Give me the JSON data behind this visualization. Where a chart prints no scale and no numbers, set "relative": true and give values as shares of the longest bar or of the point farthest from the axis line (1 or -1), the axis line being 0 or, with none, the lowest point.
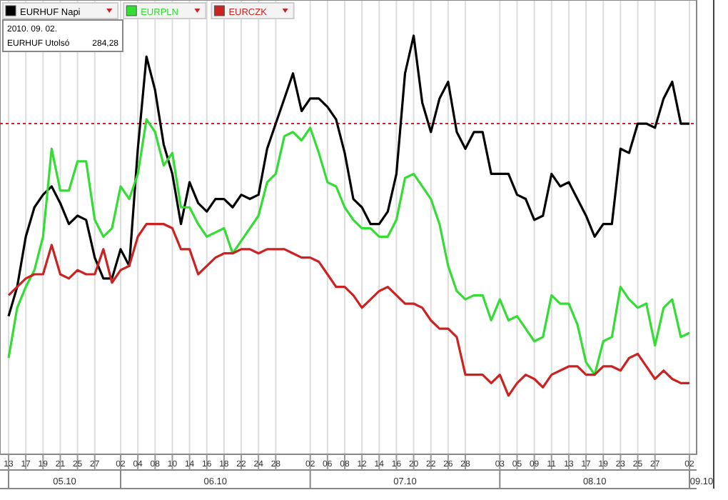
{
  "chart_data": {
    "type": "line",
    "relative": true,
    "legend": "top left",
    "grid": "x",
    "line_style": "solid",
    "marker": "none",
    "categories": [
      "13",
      null,
      "17",
      null,
      "19",
      null,
      "21",
      null,
      "25",
      null,
      "27",
      null,
      null,
      "02",
      null,
      "04",
      null,
      "08",
      null,
      "10",
      null,
      "14",
      null,
      "16",
      null,
      "18",
      null,
      "22",
      null,
      "24",
      null,
      "28",
      null,
      null,
      null,
      "02",
      null,
      "06",
      null,
      "08",
      null,
      "12",
      null,
      "14",
      null,
      "16",
      null,
      "20",
      null,
      "22",
      null,
      "26",
      null,
      "28",
      null,
      null,
      null,
      "03",
      null,
      "05",
      null,
      "09",
      null,
      "11",
      null,
      "13",
      null,
      "17",
      null,
      "19",
      null,
      "23",
      null,
      "25",
      null,
      "27",
      null,
      null,
      null,
      "02"
    ],
    "series": [
      {
        "name": "EURHUF Napi",
        "color": "#000000",
        "values": [
          0.33,
          0.4,
          0.52,
          0.59,
          0.62,
          0.64,
          0.6,
          0.55,
          0.57,
          0.56,
          0.47,
          0.42,
          0.42,
          0.49,
          0.45,
          0.73,
          0.95,
          0.87,
          0.74,
          0.67,
          0.55,
          0.65,
          0.6,
          0.58,
          0.61,
          0.61,
          0.59,
          0.62,
          0.61,
          0.62,
          0.73,
          0.79,
          0.85,
          0.91,
          0.82,
          0.85,
          0.85,
          0.83,
          0.8,
          0.72,
          0.61,
          0.59,
          0.55,
          0.55,
          0.58,
          0.67,
          0.91,
          1.0,
          0.84,
          0.77,
          0.85,
          0.89,
          0.77,
          0.73,
          0.77,
          0.77,
          0.67,
          0.67,
          0.67,
          0.62,
          0.61,
          0.56,
          0.57,
          0.67,
          0.64,
          0.65,
          0.61,
          0.57,
          0.52,
          0.55,
          0.55,
          0.73,
          0.72,
          0.79,
          0.79,
          0.78,
          0.85,
          0.89,
          0.79,
          0.79
        ]
      },
      {
        "name": "EURPLN",
        "color": "#33dd33",
        "values": [
          0.23,
          0.35,
          0.4,
          0.44,
          0.52,
          0.73,
          0.63,
          0.63,
          0.7,
          0.7,
          0.56,
          0.52,
          0.54,
          0.64,
          0.61,
          0.67,
          0.8,
          0.77,
          0.69,
          0.72,
          0.59,
          0.59,
          0.55,
          0.52,
          0.53,
          0.54,
          0.48,
          0.51,
          0.54,
          0.57,
          0.65,
          0.67,
          0.76,
          0.77,
          0.75,
          0.78,
          0.72,
          0.65,
          0.64,
          0.59,
          0.56,
          0.54,
          0.54,
          0.52,
          0.52,
          0.56,
          0.66,
          0.67,
          0.64,
          0.61,
          0.55,
          0.45,
          0.39,
          0.37,
          0.38,
          0.38,
          0.32,
          0.37,
          0.32,
          0.33,
          0.3,
          0.27,
          0.28,
          0.38,
          0.36,
          0.36,
          0.31,
          0.22,
          0.19,
          0.27,
          0.28,
          0.4,
          0.37,
          0.35,
          0.36,
          0.26,
          0.35,
          0.37,
          0.28,
          0.29
        ]
      },
      {
        "name": "EURCZK",
        "color": "#cc2222",
        "values": [
          0.38,
          0.4,
          0.42,
          0.43,
          0.43,
          0.5,
          0.43,
          0.42,
          0.44,
          0.43,
          0.43,
          0.49,
          0.41,
          0.44,
          0.45,
          0.52,
          0.55,
          0.55,
          0.55,
          0.54,
          0.49,
          0.49,
          0.43,
          0.45,
          0.47,
          0.48,
          0.48,
          0.49,
          0.49,
          0.48,
          0.49,
          0.49,
          0.49,
          0.48,
          0.47,
          0.47,
          0.46,
          0.43,
          0.4,
          0.4,
          0.38,
          0.35,
          0.37,
          0.39,
          0.4,
          0.38,
          0.36,
          0.36,
          0.35,
          0.32,
          0.3,
          0.3,
          0.28,
          0.19,
          0.19,
          0.19,
          0.17,
          0.19,
          0.14,
          0.17,
          0.19,
          0.18,
          0.16,
          0.19,
          0.2,
          0.21,
          0.21,
          0.19,
          0.19,
          0.21,
          0.21,
          0.2,
          0.23,
          0.24,
          0.21,
          0.18,
          0.2,
          0.18,
          0.17,
          0.17
        ]
      }
    ],
    "ref_lines": [
      {
        "axis": "y",
        "value": 0.79,
        "color": "#cc2222",
        "line_style": "dotted"
      }
    ],
    "annotations": [
      "2010. 09. 02.",
      "EURHUF Utolsó",
      "284,28",
      "05.10",
      "06.10",
      "07.10",
      "08.10",
      "09.10"
    ]
  }
}
